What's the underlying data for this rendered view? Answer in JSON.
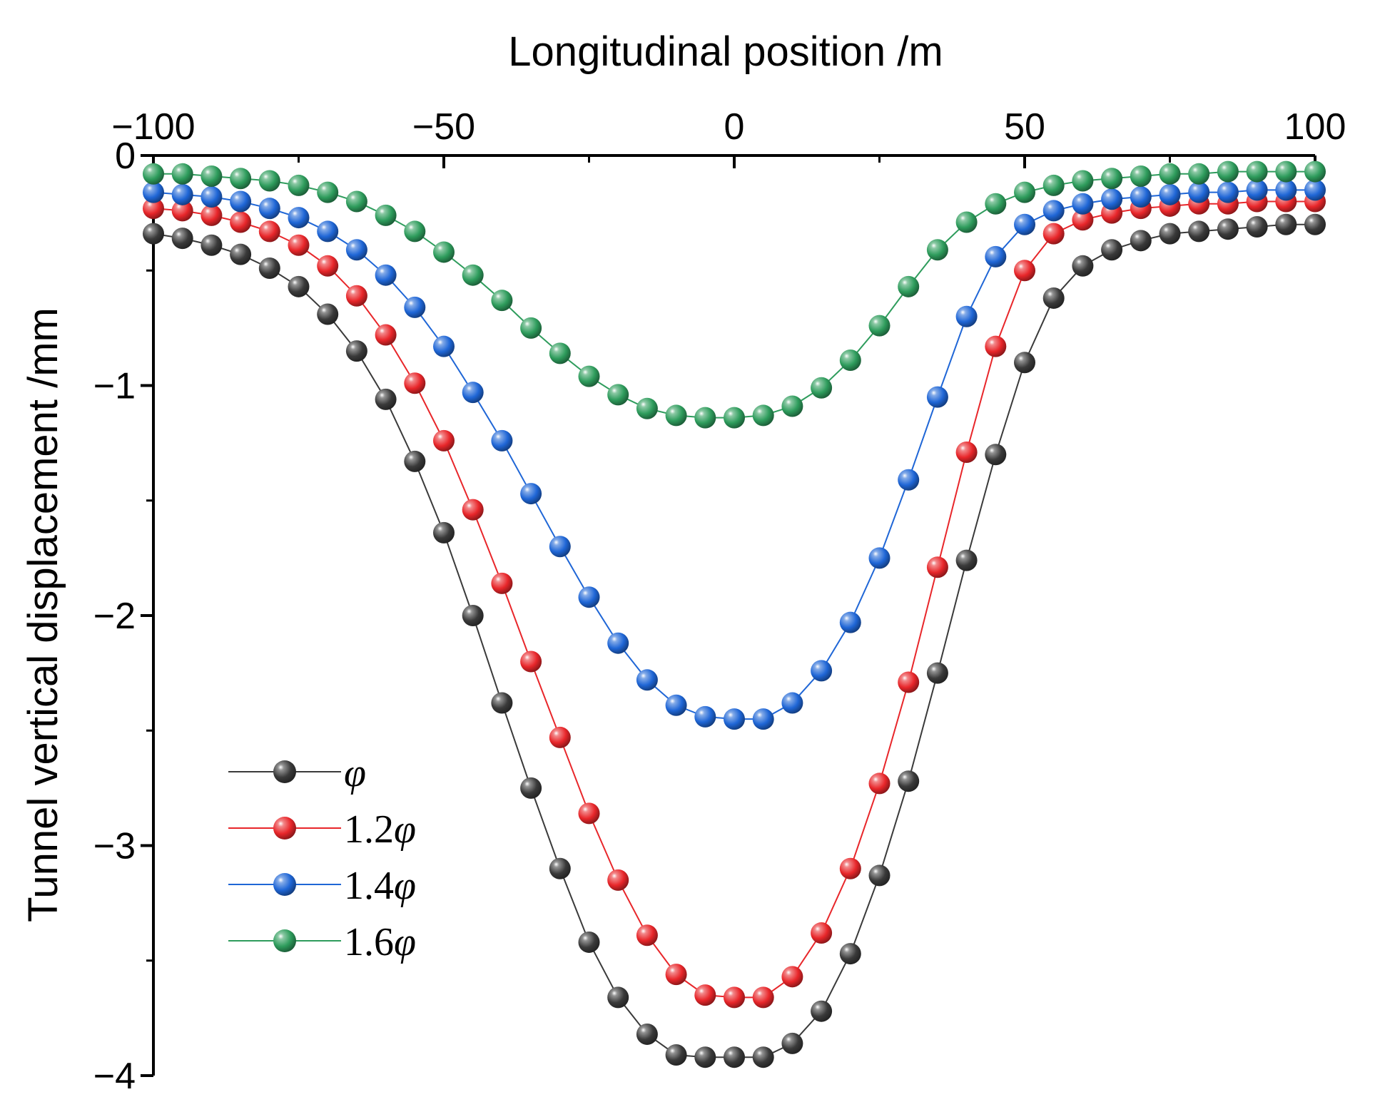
{
  "chart_data": {
    "type": "line",
    "title": "",
    "xlabel": "Longitudinal position /m",
    "ylabel": "Tunnel vertical displacement /mm",
    "x_axis_position": "top",
    "xlim": [
      -100,
      100
    ],
    "ylim": [
      -4,
      0
    ],
    "xticks": [
      -100,
      -50,
      0,
      50,
      100
    ],
    "xtick_labels": [
      "−100",
      "−50",
      "0",
      "50",
      "100"
    ],
    "yticks": [
      0,
      -1,
      -2,
      -3,
      -4
    ],
    "ytick_labels": [
      "0",
      "−1",
      "−2",
      "−3",
      "−4"
    ],
    "grid": false,
    "legend_position": "bottom-left",
    "marker": "sphere",
    "series": [
      {
        "name": "φ",
        "legend_prefix": "",
        "color": "#3a3a3a",
        "peak": -3.92,
        "x": [
          -100,
          -95,
          -90,
          -85,
          -80,
          -75,
          -70,
          -65,
          -60,
          -55,
          -50,
          -45,
          -40,
          -35,
          -30,
          -25,
          -20,
          -15,
          -10,
          -5,
          0,
          5,
          10,
          15,
          20,
          25,
          30,
          35,
          40,
          45,
          50,
          55,
          60,
          65,
          70,
          75,
          80,
          85,
          90,
          95,
          100
        ],
        "y": [
          -0.34,
          -0.36,
          -0.39,
          -0.43,
          -0.49,
          -0.57,
          -0.69,
          -0.85,
          -1.06,
          -1.33,
          -1.64,
          -2.0,
          -2.38,
          -2.75,
          -3.1,
          -3.42,
          -3.66,
          -3.82,
          -3.91,
          -3.92,
          -3.92,
          -3.92,
          -3.86,
          -3.72,
          -3.47,
          -3.13,
          -2.72,
          -2.25,
          -1.76,
          -1.3,
          -0.9,
          -0.62,
          -0.48,
          -0.41,
          -0.37,
          -0.34,
          -0.33,
          -0.32,
          -0.31,
          -0.3,
          -0.3
        ]
      },
      {
        "name": "1.2φ",
        "legend_prefix": "1.2",
        "color": "#e8262a",
        "peak": -3.66,
        "x": [
          -100,
          -95,
          -90,
          -85,
          -80,
          -75,
          -70,
          -65,
          -60,
          -55,
          -50,
          -45,
          -40,
          -35,
          -30,
          -25,
          -20,
          -15,
          -10,
          -5,
          0,
          5,
          10,
          15,
          20,
          25,
          30,
          35,
          40,
          45,
          50,
          55,
          60,
          65,
          70,
          75,
          80,
          85,
          90,
          95,
          100
        ],
        "y": [
          -0.23,
          -0.24,
          -0.26,
          -0.29,
          -0.33,
          -0.39,
          -0.48,
          -0.61,
          -0.78,
          -0.99,
          -1.24,
          -1.54,
          -1.86,
          -2.2,
          -2.53,
          -2.86,
          -3.15,
          -3.39,
          -3.56,
          -3.65,
          -3.66,
          -3.66,
          -3.57,
          -3.38,
          -3.1,
          -2.73,
          -2.29,
          -1.79,
          -1.29,
          -0.83,
          -0.5,
          -0.34,
          -0.28,
          -0.25,
          -0.23,
          -0.22,
          -0.21,
          -0.21,
          -0.2,
          -0.2,
          -0.2
        ]
      },
      {
        "name": "1.4φ",
        "legend_prefix": "1.4",
        "color": "#1f66d6",
        "peak": -2.45,
        "x": [
          -100,
          -95,
          -90,
          -85,
          -80,
          -75,
          -70,
          -65,
          -60,
          -55,
          -50,
          -45,
          -40,
          -35,
          -30,
          -25,
          -20,
          -15,
          -10,
          -5,
          0,
          5,
          10,
          15,
          20,
          25,
          30,
          35,
          40,
          45,
          50,
          55,
          60,
          65,
          70,
          75,
          80,
          85,
          90,
          95,
          100
        ],
        "y": [
          -0.16,
          -0.17,
          -0.18,
          -0.2,
          -0.23,
          -0.27,
          -0.33,
          -0.41,
          -0.52,
          -0.66,
          -0.83,
          -1.03,
          -1.24,
          -1.47,
          -1.7,
          -1.92,
          -2.12,
          -2.28,
          -2.39,
          -2.44,
          -2.45,
          -2.45,
          -2.38,
          -2.24,
          -2.03,
          -1.75,
          -1.41,
          -1.05,
          -0.7,
          -0.44,
          -0.3,
          -0.24,
          -0.21,
          -0.19,
          -0.18,
          -0.17,
          -0.16,
          -0.16,
          -0.15,
          -0.15,
          -0.15
        ]
      },
      {
        "name": "1.6φ",
        "legend_prefix": "1.6",
        "color": "#2e9c5c",
        "peak": -1.14,
        "x": [
          -100,
          -95,
          -90,
          -85,
          -80,
          -75,
          -70,
          -65,
          -60,
          -55,
          -50,
          -45,
          -40,
          -35,
          -30,
          -25,
          -20,
          -15,
          -10,
          -5,
          0,
          5,
          10,
          15,
          20,
          25,
          30,
          35,
          40,
          45,
          50,
          55,
          60,
          65,
          70,
          75,
          80,
          85,
          90,
          95,
          100
        ],
        "y": [
          -0.08,
          -0.08,
          -0.09,
          -0.1,
          -0.11,
          -0.13,
          -0.16,
          -0.2,
          -0.26,
          -0.33,
          -0.42,
          -0.52,
          -0.63,
          -0.75,
          -0.86,
          -0.96,
          -1.04,
          -1.1,
          -1.13,
          -1.14,
          -1.14,
          -1.13,
          -1.09,
          -1.01,
          -0.89,
          -0.74,
          -0.57,
          -0.41,
          -0.29,
          -0.21,
          -0.16,
          -0.13,
          -0.11,
          -0.1,
          -0.09,
          -0.08,
          -0.08,
          -0.07,
          -0.07,
          -0.07,
          -0.07
        ]
      }
    ]
  }
}
